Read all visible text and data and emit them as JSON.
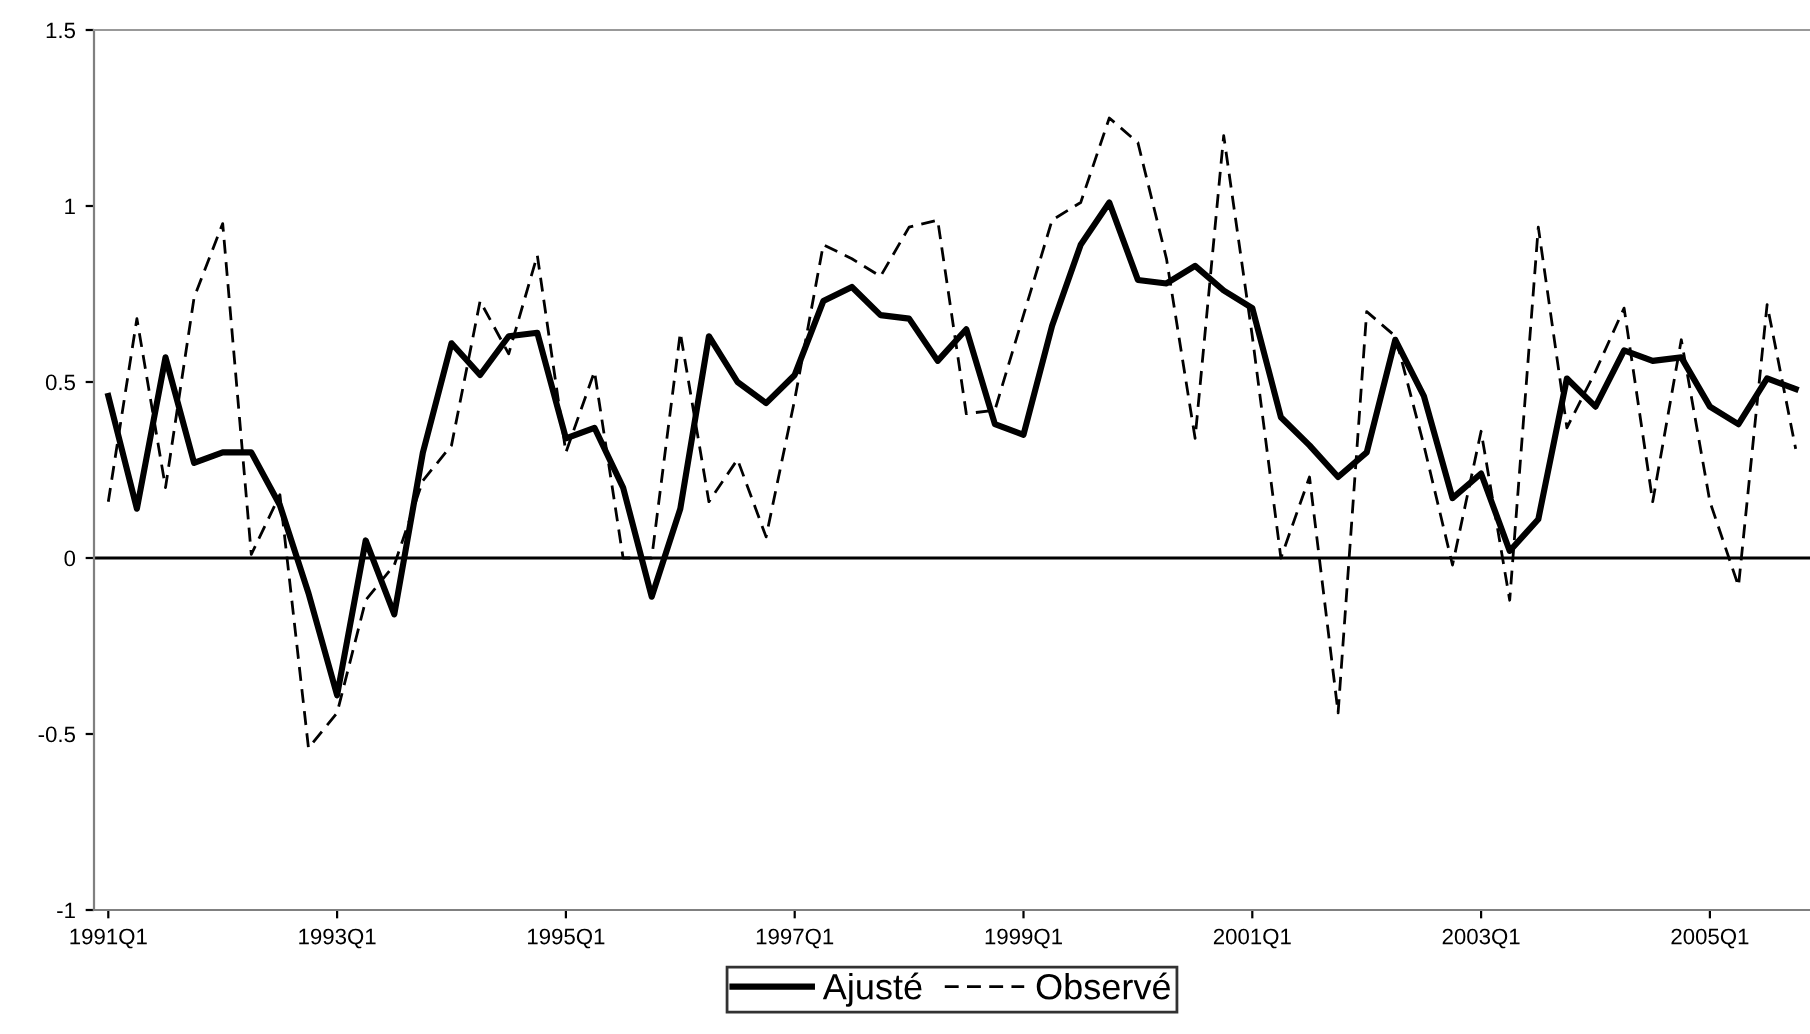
{
  "chart_data": {
    "type": "line",
    "categories": [
      "1991Q1",
      null,
      null,
      null,
      null,
      null,
      null,
      null,
      "1993Q1",
      null,
      null,
      null,
      null,
      null,
      null,
      null,
      "1995Q1",
      null,
      null,
      null,
      null,
      null,
      null,
      null,
      "1997Q1",
      null,
      null,
      null,
      null,
      null,
      null,
      null,
      "1999Q1",
      null,
      null,
      null,
      null,
      null,
      null,
      null,
      "2001Q1",
      null,
      null,
      null,
      null,
      null,
      null,
      null,
      "2003Q1",
      null,
      null,
      null,
      null,
      null,
      null,
      null,
      "2005Q1",
      null,
      null,
      null
    ],
    "series": [
      {
        "name": "Ajusté",
        "color": "#000000",
        "line_style": "solid",
        "values": [
          0.46,
          0.14,
          0.57,
          0.27,
          0.3,
          0.3,
          0.15,
          -0.1,
          -0.39,
          0.05,
          -0.16,
          0.3,
          0.61,
          0.52,
          0.63,
          0.64,
          0.34,
          0.37,
          0.2,
          -0.11,
          0.14,
          0.63,
          0.5,
          0.44,
          0.52,
          0.73,
          0.77,
          0.69,
          0.68,
          0.56,
          0.65,
          0.38,
          0.35,
          0.66,
          0.89,
          1.01,
          0.79,
          0.78,
          0.83,
          0.76,
          0.71,
          0.4,
          0.32,
          0.23,
          0.3,
          0.62,
          0.46,
          0.17,
          0.24,
          0.02,
          0.11,
          0.51,
          0.43,
          0.59,
          0.56,
          0.57,
          0.43,
          0.38,
          0.51,
          0.48
        ]
      },
      {
        "name": "Observé",
        "color": "#000000",
        "line_style": "dashed",
        "values": [
          0.16,
          0.68,
          0.2,
          0.74,
          0.95,
          0.01,
          0.18,
          -0.54,
          -0.44,
          -0.12,
          -0.02,
          0.22,
          0.32,
          0.73,
          0.58,
          0.86,
          0.3,
          0.53,
          0.0,
          0.0,
          0.64,
          0.16,
          0.28,
          0.06,
          0.45,
          0.89,
          0.85,
          0.8,
          0.94,
          0.96,
          0.41,
          0.42,
          0.69,
          0.96,
          1.01,
          1.25,
          1.18,
          0.85,
          0.34,
          1.2,
          0.63,
          0.0,
          0.23,
          -0.44,
          0.7,
          0.63,
          0.32,
          -0.02,
          0.36,
          -0.12,
          0.94,
          0.37,
          0.53,
          0.71,
          0.16,
          0.62,
          0.16,
          -0.08,
          0.72,
          0.31
        ]
      }
    ],
    "ylim": [
      -1,
      1.5
    ],
    "yticks": [
      -1,
      -0.5,
      0,
      0.5,
      1,
      1.5
    ],
    "ref_lines": [
      {
        "axis": "y",
        "value": 0,
        "color": "#000000"
      }
    ],
    "grid": false,
    "legend": "bottom",
    "marker": "none"
  }
}
